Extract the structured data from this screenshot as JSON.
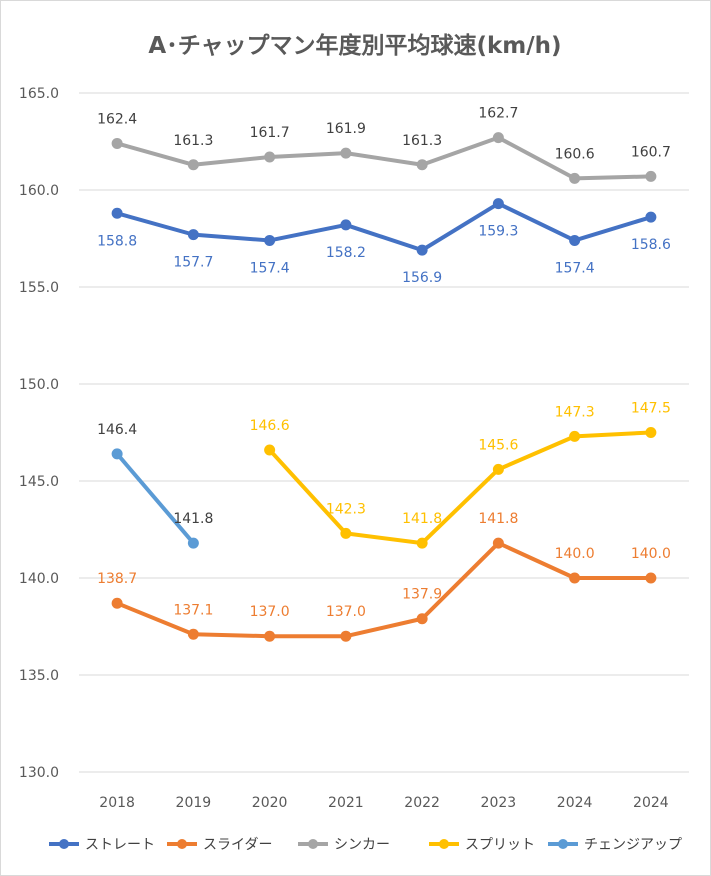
{
  "chart_data": {
    "type": "line",
    "title": "A･チャップマン年度別平均球速(km/h)",
    "xlabel": "",
    "ylabel": "",
    "categories": [
      "2018",
      "2019",
      "2020",
      "2021",
      "2022",
      "2023",
      "2024",
      "2024"
    ],
    "ylim": [
      130,
      165
    ],
    "yticks": [
      "130.0",
      "135.0",
      "140.0",
      "145.0",
      "150.0",
      "155.0",
      "160.0",
      "165.0"
    ],
    "grid": true,
    "legend_position": "bottom",
    "series": [
      {
        "name": "ストレート",
        "color": "#4472C4",
        "values": [
          158.8,
          157.7,
          157.4,
          158.2,
          156.9,
          159.3,
          157.4,
          158.6
        ],
        "labels": [
          "158.8",
          "157.7",
          "157.4",
          "158.2",
          "156.9",
          "159.3",
          "157.4",
          "158.6"
        ],
        "label_position": "below"
      },
      {
        "name": "スライダー",
        "color": "#ED7D31",
        "values": [
          138.7,
          137.1,
          137.0,
          137.0,
          137.9,
          141.8,
          140.0,
          140.0
        ],
        "labels": [
          "138.7",
          "137.1",
          "137.0",
          "137.0",
          "137.9",
          "141.8",
          "140.0",
          "140.0"
        ],
        "label_position": "above"
      },
      {
        "name": "シンカー",
        "color": "#A5A5A5",
        "values": [
          162.4,
          161.3,
          161.7,
          161.9,
          161.3,
          162.7,
          160.6,
          160.7
        ],
        "labels": [
          "162.4",
          "161.3",
          "161.7",
          "161.9",
          "161.3",
          "162.7",
          "160.6",
          "160.7"
        ],
        "label_color": "#404040",
        "label_position": "above"
      },
      {
        "name": "スプリット",
        "color": "#FFC000",
        "values": [
          null,
          null,
          146.6,
          142.3,
          141.8,
          145.6,
          147.3,
          147.5
        ],
        "labels": [
          null,
          null,
          "146.6",
          "142.3",
          "141.8",
          "145.6",
          "147.3",
          "147.5"
        ],
        "label_position": "above"
      },
      {
        "name": "チェンジアップ",
        "color": "#5B9BD5",
        "values": [
          146.4,
          141.8,
          null,
          null,
          null,
          null,
          null,
          null
        ],
        "labels": [
          "146.4",
          "141.8",
          null,
          null,
          null,
          null,
          null,
          null
        ],
        "label_color": "#404040",
        "label_position": "above"
      }
    ]
  }
}
